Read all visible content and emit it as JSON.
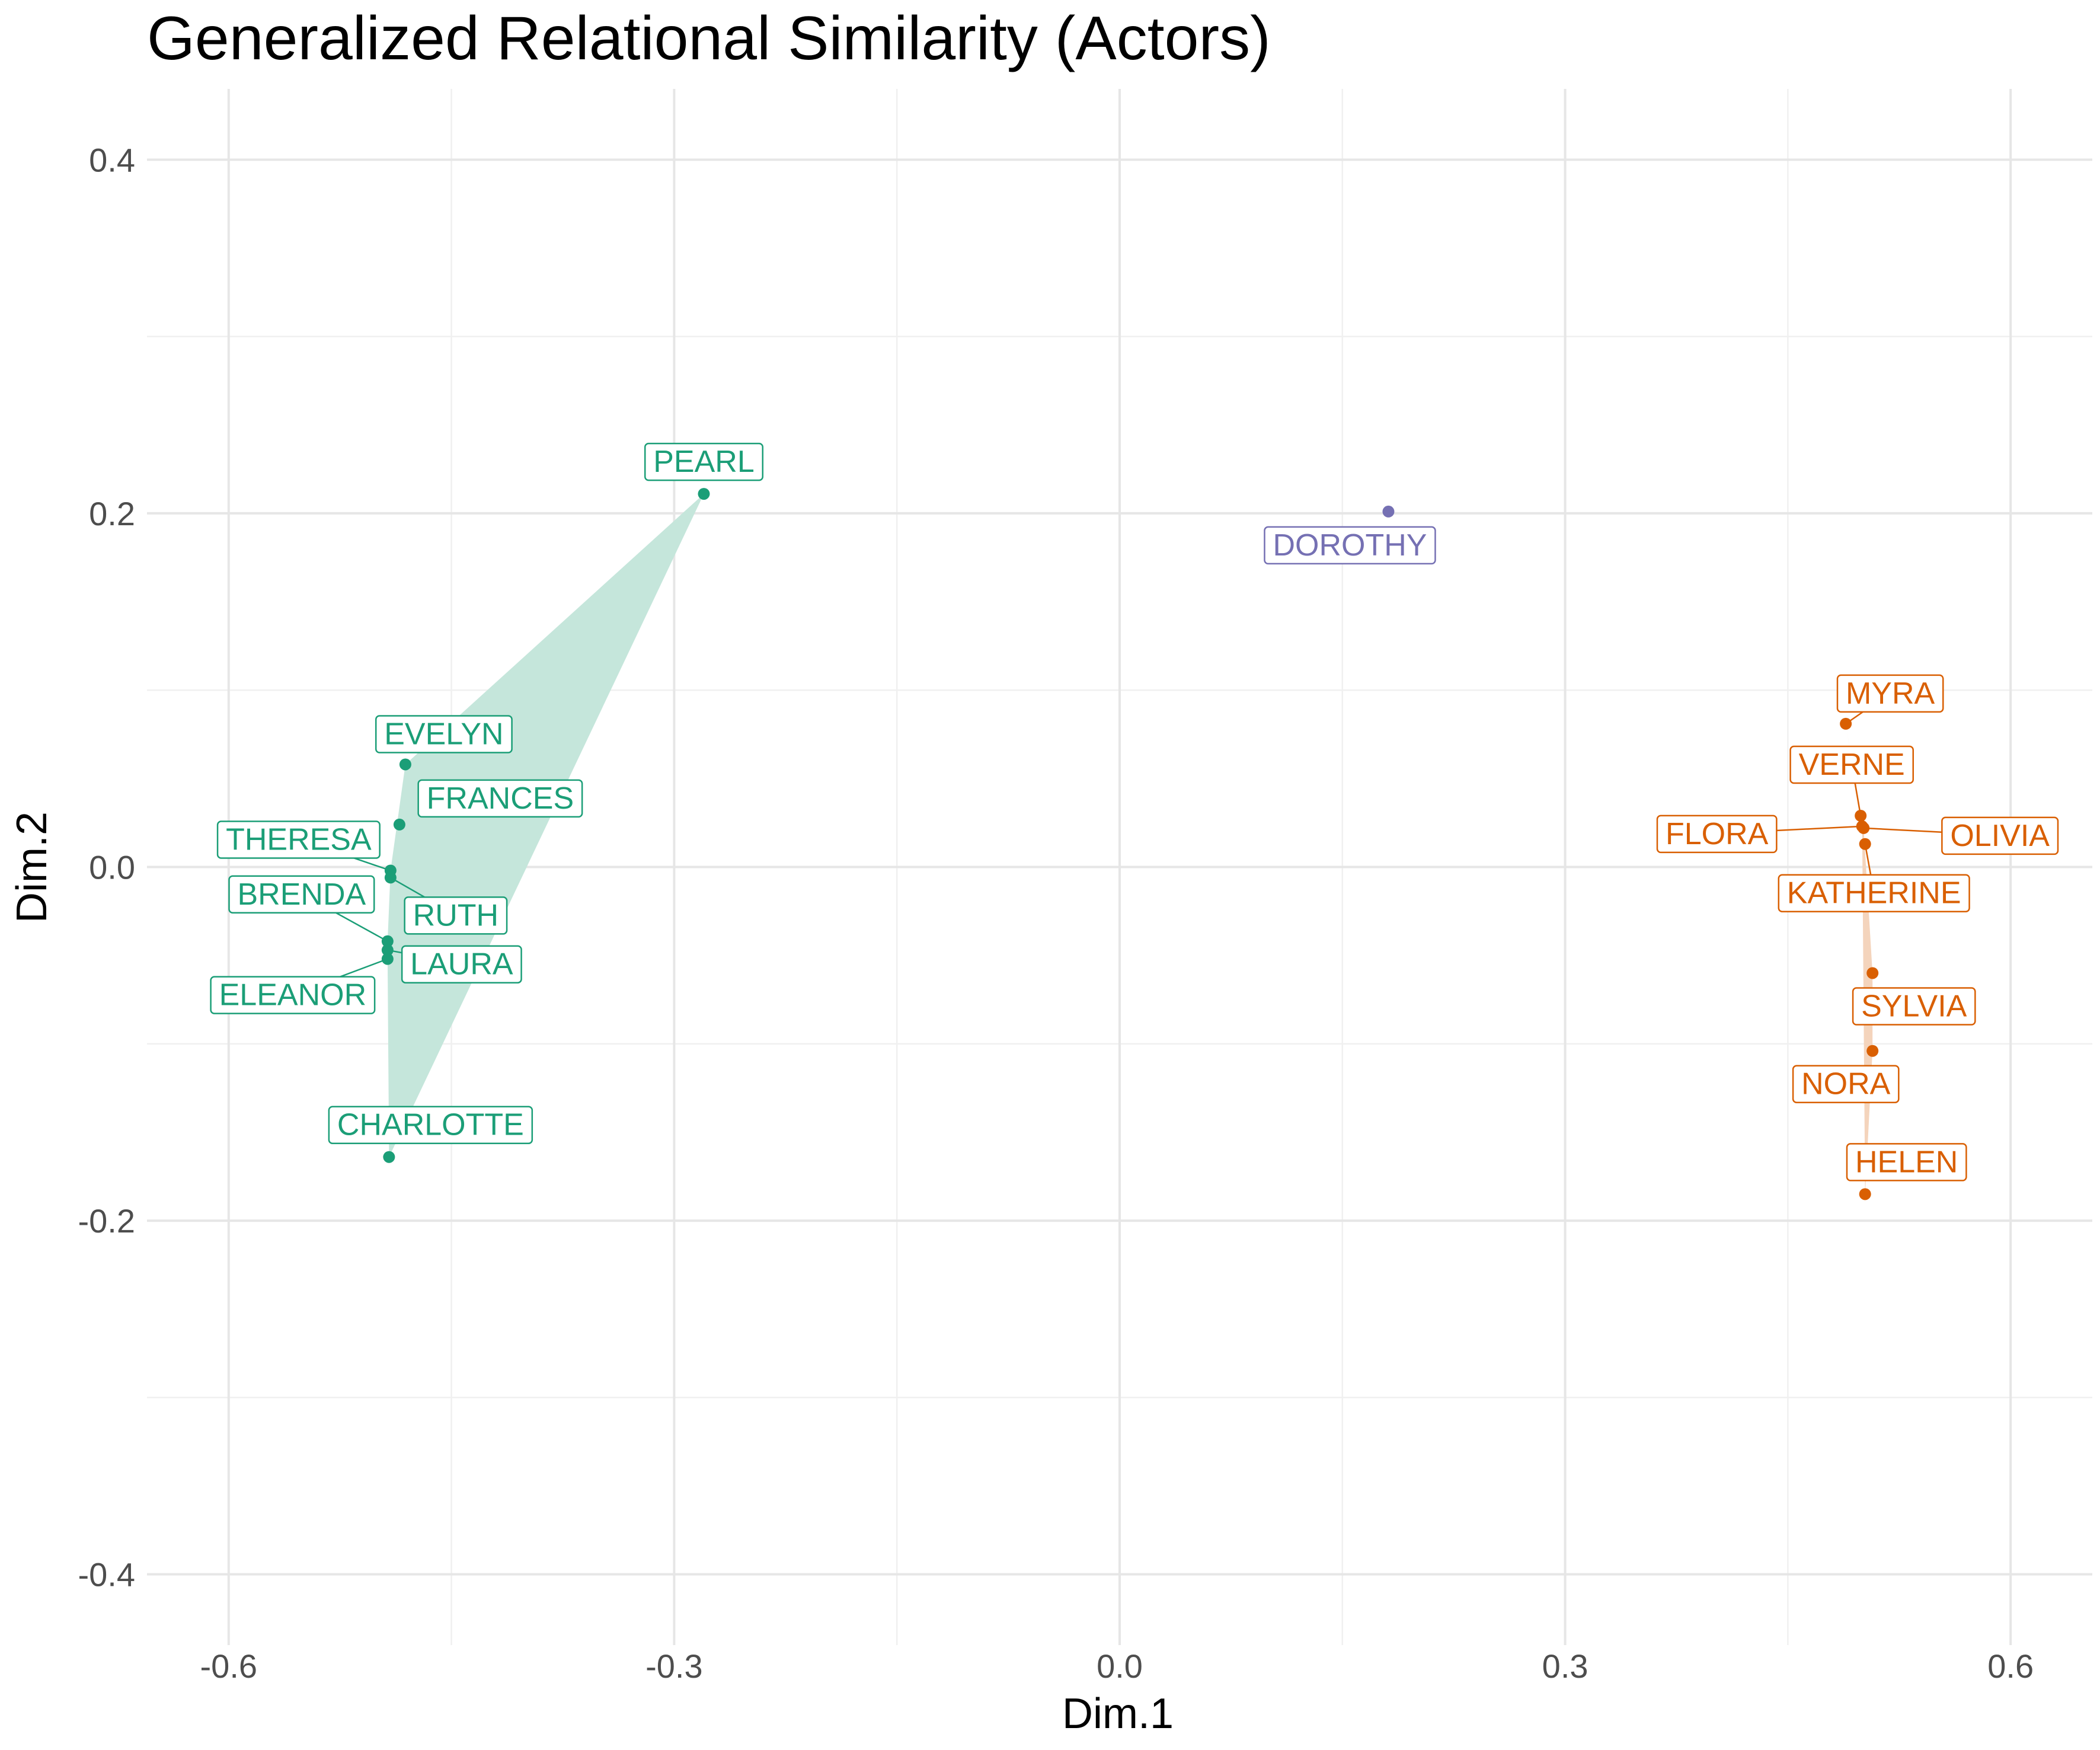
{
  "chart_data": {
    "type": "scatter",
    "title": "Generalized Relational Similarity (Actors)",
    "xlabel": "Dim.1",
    "ylabel": "Dim.2",
    "xlim": [
      -0.655,
      0.655
    ],
    "ylim": [
      -0.44,
      0.44
    ],
    "xticks": [
      -0.6,
      -0.3,
      0.0,
      0.3,
      0.6
    ],
    "xtick_labels": [
      "-0.6",
      "-0.3",
      "0.0",
      "0.3",
      "0.6"
    ],
    "yticks": [
      -0.4,
      -0.2,
      0.0,
      0.2,
      0.4
    ],
    "ytick_labels": [
      "-0.4",
      "-0.2",
      "0.0",
      "0.2",
      "0.4"
    ],
    "grid": true,
    "legend": "none",
    "groups": [
      {
        "color": "#1b9e77",
        "fill": "#c5e6db",
        "hull": [
          "PEARL",
          "EVELYN",
          "THERESA",
          "BRENDA",
          "ELEANOR",
          "CHARLOTTE"
        ],
        "points": [
          {
            "label": "PEARL",
            "x": -0.28,
            "y": 0.211
          },
          {
            "label": "EVELYN",
            "x": -0.481,
            "y": 0.058
          },
          {
            "label": "FRANCES",
            "x": -0.485,
            "y": 0.024
          },
          {
            "label": "THERESA",
            "x": -0.491,
            "y": -0.002
          },
          {
            "label": "RUTH",
            "x": -0.491,
            "y": -0.006
          },
          {
            "label": "BRENDA",
            "x": -0.493,
            "y": -0.042
          },
          {
            "label": "LAURA",
            "x": -0.493,
            "y": -0.047
          },
          {
            "label": "ELEANOR",
            "x": -0.493,
            "y": -0.052
          },
          {
            "label": "CHARLOTTE",
            "x": -0.492,
            "y": -0.164
          }
        ]
      },
      {
        "color": "#7570b3",
        "fill": "#d3d1e8",
        "hull": [],
        "points": [
          {
            "label": "DOROTHY",
            "x": 0.181,
            "y": 0.201
          }
        ]
      },
      {
        "color": "#d95f02",
        "fill": "#f4d4bc",
        "hull": [
          "MYRA",
          "VERNE",
          "OLIVIA",
          "SYLVIA",
          "NORA",
          "HELEN",
          "FLORA"
        ],
        "points": [
          {
            "label": "MYRA",
            "x": 0.489,
            "y": 0.081
          },
          {
            "label": "VERNE",
            "x": 0.499,
            "y": 0.029
          },
          {
            "label": "FLORA",
            "x": 0.5,
            "y": 0.023
          },
          {
            "label": "OLIVIA",
            "x": 0.501,
            "y": 0.022
          },
          {
            "label": "KATHERINE",
            "x": 0.502,
            "y": 0.013
          },
          {
            "label": "SYLVIA",
            "x": 0.507,
            "y": -0.06
          },
          {
            "label": "NORA",
            "x": 0.507,
            "y": -0.104
          },
          {
            "label": "HELEN",
            "x": 0.502,
            "y": -0.185
          }
        ]
      }
    ]
  }
}
